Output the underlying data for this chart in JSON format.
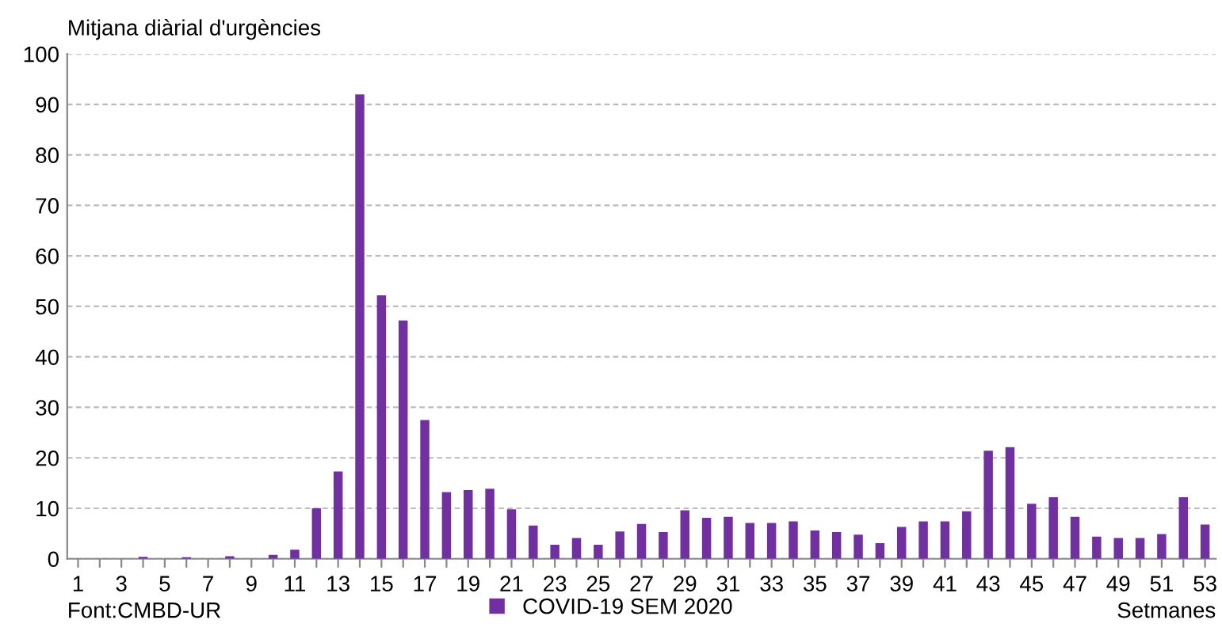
{
  "chart_data": {
    "type": "bar",
    "ylabel": "Mitjana diàrial d'urgències",
    "xlabel": "Setmanes",
    "categories": [
      "1",
      null,
      "3",
      null,
      "5",
      null,
      "7",
      null,
      "9",
      null,
      "11",
      null,
      "13",
      null,
      "15",
      null,
      "17",
      null,
      "19",
      null,
      "21",
      null,
      "23",
      null,
      "25",
      null,
      "27",
      null,
      "29",
      null,
      "31",
      null,
      "33",
      null,
      "35",
      null,
      "37",
      null,
      "39",
      null,
      "41",
      null,
      "43",
      null,
      "45",
      null,
      "47",
      null,
      "49",
      null,
      "51",
      null,
      "53"
    ],
    "series": [
      {
        "name": "COVID-19 SEM 2020",
        "color": "#7030a0",
        "values": [
          0,
          0,
          0,
          0.4,
          0,
          0.3,
          0,
          0.5,
          0,
          0.8,
          1.8,
          10,
          17.3,
          92,
          52.2,
          47.2,
          27.5,
          13.2,
          13.6,
          13.9,
          9.8,
          6.6,
          2.8,
          4.1,
          2.8,
          5.4,
          6.9,
          5.3,
          9.6,
          8.1,
          8.3,
          7.1,
          7.1,
          7.4,
          5.6,
          5.3,
          4.8,
          3.1,
          6.3,
          7.4,
          7.4,
          9.4,
          21.4,
          22.1,
          10.9,
          12.2,
          8.3,
          4.4,
          4.1,
          4.1,
          4.9,
          12.2,
          6.8
        ]
      }
    ],
    "ylim": [
      0,
      100
    ],
    "yticks": [
      0,
      10,
      20,
      30,
      40,
      50,
      60,
      70,
      80,
      90,
      100
    ],
    "grid": "y",
    "legend": "bottom",
    "annotations": [
      "Font:CMBD-UR"
    ]
  }
}
